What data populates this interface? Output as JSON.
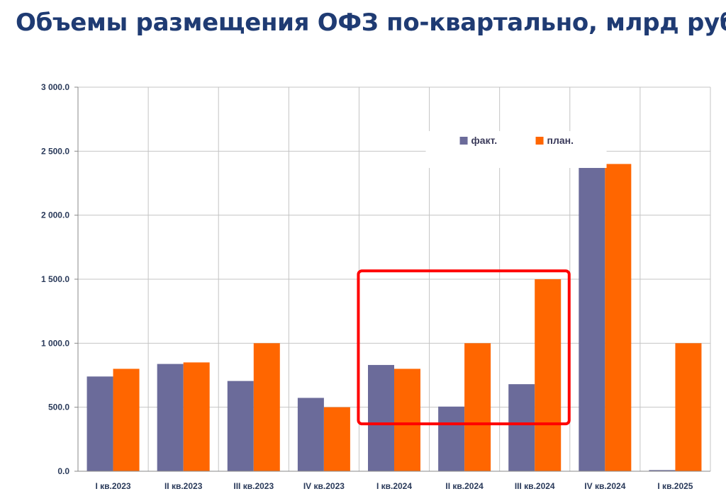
{
  "title": "Объемы размещения ОФЗ по-квартально, млрд руб.",
  "chart_data": {
    "type": "bar",
    "categories": [
      "I кв.2023",
      "II кв.2023",
      "III кв.2023",
      "IV кв.2023",
      "I кв.2024",
      "II кв.2024",
      "III кв.2024",
      "IV кв.2024",
      "I кв.2025"
    ],
    "series": [
      {
        "name": "факт.",
        "color": "#6b6b9a",
        "values": [
          740,
          838,
          705,
          573,
          830,
          505,
          680,
          2370,
          9
        ]
      },
      {
        "name": "план.",
        "color": "#ff6600",
        "values": [
          800,
          850,
          1000,
          500,
          800,
          1000,
          1500,
          2400,
          1000
        ]
      }
    ],
    "yticks": [
      "0.0",
      "500.0",
      "1 000.0",
      "1 500.0",
      "2 000.0",
      "2 500.0",
      "3 000.0"
    ],
    "ylim": [
      0,
      3000
    ],
    "grid": true,
    "legend_position": "top-right",
    "highlight_color": "#ff0000"
  }
}
